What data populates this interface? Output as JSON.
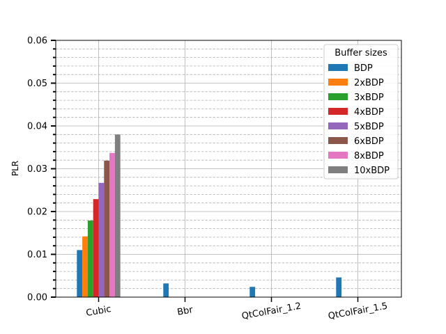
{
  "chart_data": {
    "type": "bar",
    "title": "",
    "xlabel": "",
    "ylabel": "PLR",
    "ylim": [
      0,
      0.06
    ],
    "y_major_ticks": [
      "0.00",
      "0.01",
      "0.02",
      "0.03",
      "0.04",
      "0.05",
      "0.06"
    ],
    "categories": [
      "Cubic",
      "Bbr",
      "QtColFair_1.2",
      "QtColFair_1.5"
    ],
    "legend": {
      "title": "Buffer sizes",
      "placement": "upper-right"
    },
    "grid": {
      "major": true,
      "minor": true,
      "minor_style": "dashed"
    },
    "series": [
      {
        "name": "BDP",
        "color": "#1f77b4",
        "values": [
          0.011,
          0.0032,
          0.0024,
          0.0046
        ]
      },
      {
        "name": "2xBDP",
        "color": "#ff7f0e",
        "values": [
          0.0142,
          0,
          0,
          0
        ]
      },
      {
        "name": "3xBDP",
        "color": "#2ca02c",
        "values": [
          0.0179,
          0,
          0,
          0
        ]
      },
      {
        "name": "4xBDP",
        "color": "#d62728",
        "values": [
          0.0229,
          0,
          0,
          0
        ]
      },
      {
        "name": "5xBDP",
        "color": "#9467bd",
        "values": [
          0.0267,
          0,
          0,
          0
        ]
      },
      {
        "name": "6xBDP",
        "color": "#8c564b",
        "values": [
          0.0319,
          0,
          0,
          0
        ]
      },
      {
        "name": "8xBDP",
        "color": "#e377c2",
        "values": [
          0.0337,
          0,
          0,
          0
        ]
      },
      {
        "name": "10xBDP",
        "color": "#7f7f7f",
        "values": [
          0.038,
          0,
          0,
          0
        ]
      }
    ]
  }
}
